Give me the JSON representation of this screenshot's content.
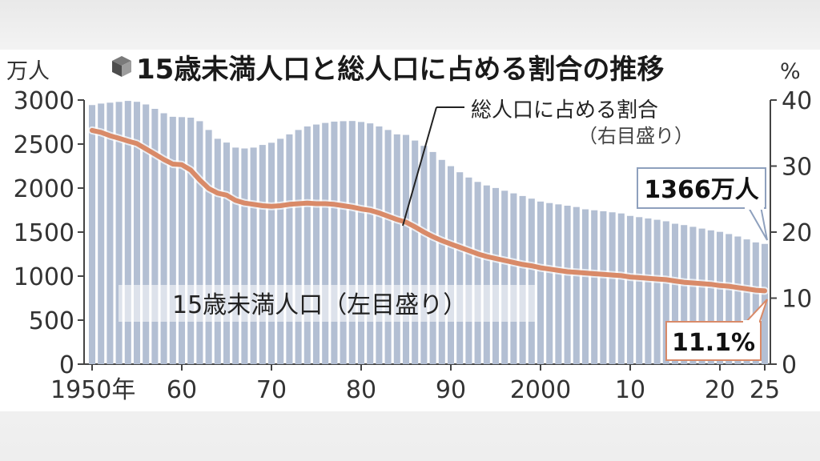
{
  "chart_data": {
    "type": "bar",
    "title": "15歳未満人口と総人口に占める割合の推移",
    "left_axis": {
      "unit": "万人",
      "ticks": [
        "3000",
        "2500",
        "2000",
        "1500",
        "1000",
        "500",
        "0"
      ],
      "ylim": [
        0,
        3000
      ]
    },
    "right_axis": {
      "unit": "%",
      "ticks": [
        "40",
        "30",
        "20",
        "10",
        "0"
      ],
      "ylim": [
        0,
        40
      ]
    },
    "x_tick_labels": [
      "1950年",
      "60",
      "70",
      "80",
      "90",
      "2000",
      "10",
      "20",
      "25"
    ],
    "x": [
      1950,
      1951,
      1952,
      1953,
      1954,
      1955,
      1956,
      1957,
      1958,
      1959,
      1960,
      1961,
      1962,
      1963,
      1964,
      1965,
      1966,
      1967,
      1968,
      1969,
      1970,
      1971,
      1972,
      1973,
      1974,
      1975,
      1976,
      1977,
      1978,
      1979,
      1980,
      1981,
      1982,
      1983,
      1984,
      1985,
      1986,
      1987,
      1988,
      1989,
      1990,
      1991,
      1992,
      1993,
      1994,
      1995,
      1996,
      1997,
      1998,
      1999,
      2000,
      2001,
      2002,
      2003,
      2004,
      2005,
      2006,
      2007,
      2008,
      2009,
      2010,
      2011,
      2012,
      2013,
      2014,
      2015,
      2016,
      2017,
      2018,
      2019,
      2020,
      2021,
      2022,
      2023,
      2024,
      2025
    ],
    "series": [
      {
        "name": "15歳未満人口",
        "axis": "left",
        "label": "15歳未満人口（左目盛り）",
        "color": "#b3bfd3",
        "values": [
          2943,
          2960,
          2970,
          2979,
          2990,
          2980,
          2950,
          2900,
          2850,
          2810,
          2806,
          2800,
          2760,
          2660,
          2560,
          2517,
          2460,
          2450,
          2460,
          2490,
          2515,
          2560,
          2610,
          2660,
          2700,
          2722,
          2740,
          2755,
          2760,
          2762,
          2751,
          2735,
          2700,
          2660,
          2610,
          2604,
          2540,
          2480,
          2410,
          2320,
          2249,
          2180,
          2120,
          2070,
          2030,
          2001,
          1970,
          1940,
          1910,
          1880,
          1847,
          1830,
          1815,
          1800,
          1785,
          1759,
          1748,
          1737,
          1725,
          1712,
          1684,
          1670,
          1655,
          1640,
          1623,
          1595,
          1580,
          1560,
          1540,
          1520,
          1503,
          1478,
          1450,
          1417,
          1383,
          1366
        ]
      },
      {
        "name": "総人口に占める割合",
        "axis": "right",
        "label": "総人口に占める割合",
        "sublabel": "（右目盛り）",
        "color": "#d98a68",
        "values": [
          35.4,
          35.1,
          34.6,
          34.2,
          33.8,
          33.4,
          32.6,
          31.8,
          31.0,
          30.3,
          30.2,
          29.4,
          27.9,
          26.6,
          25.9,
          25.6,
          24.8,
          24.4,
          24.2,
          24.0,
          23.9,
          24.0,
          24.2,
          24.3,
          24.4,
          24.3,
          24.3,
          24.2,
          24.0,
          23.8,
          23.5,
          23.3,
          22.9,
          22.4,
          21.9,
          21.5,
          20.8,
          20.0,
          19.3,
          18.7,
          18.2,
          17.7,
          17.2,
          16.7,
          16.3,
          16.0,
          15.7,
          15.4,
          15.1,
          14.9,
          14.6,
          14.4,
          14.2,
          14.0,
          13.9,
          13.8,
          13.7,
          13.6,
          13.5,
          13.4,
          13.2,
          13.1,
          13.0,
          12.9,
          12.8,
          12.6,
          12.4,
          12.3,
          12.2,
          12.1,
          11.9,
          11.8,
          11.6,
          11.4,
          11.2,
          11.1
        ]
      }
    ],
    "annotations": {
      "latest_population": "1366万人",
      "latest_ratio": "11.1%"
    },
    "grid": false,
    "legend": "none (inline labels)"
  }
}
